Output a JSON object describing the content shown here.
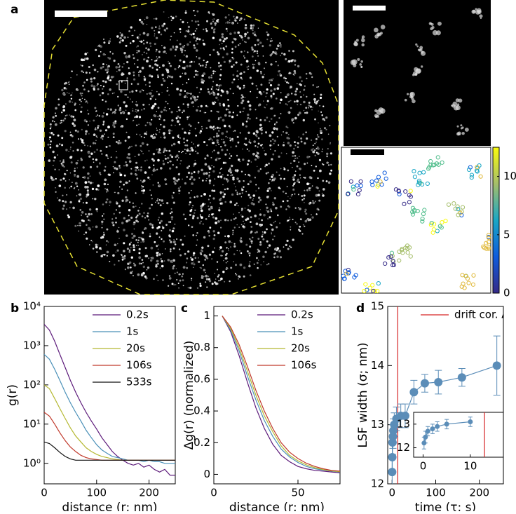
{
  "panel_labels": [
    "a",
    "b",
    "c",
    "d"
  ],
  "chart_data": [
    {
      "type": "colorbar",
      "ylim": [
        0,
        12.5
      ],
      "yticks": [
        0,
        5,
        10
      ]
    },
    {
      "type": "line",
      "log_y": true,
      "xlabel": "distance (r; nm)",
      "ylabel": "g(r)",
      "legend": "upper right",
      "x": [
        0,
        10,
        20,
        30,
        40,
        50,
        60,
        70,
        80,
        90,
        100,
        110,
        120,
        130,
        140,
        150,
        160,
        170,
        180,
        190,
        200,
        210,
        220,
        230,
        240,
        250
      ],
      "xlim": [
        0,
        250
      ],
      "xticks": [
        0,
        100,
        200
      ],
      "ylim": [
        0.3,
        10000
      ],
      "yticks": [
        {
          "value": 1,
          "label": "10⁰"
        },
        {
          "value": 10,
          "label": "10¹"
        },
        {
          "value": 100,
          "label": "10²"
        },
        {
          "value": 1000,
          "label": "10³"
        },
        {
          "value": 10000,
          "label": "10⁴"
        }
      ],
      "series": [
        {
          "name": "0.2s",
          "color": "#5c1a7a",
          "values": [
            3500,
            2500,
            1300,
            600,
            280,
            130,
            65,
            35,
            20,
            12,
            7.5,
            4.5,
            3,
            2,
            1.5,
            1.2,
            1.0,
            0.9,
            1.0,
            0.8,
            0.9,
            0.7,
            0.6,
            0.7,
            0.5,
            0.5
          ]
        },
        {
          "name": "1s",
          "color": "#4a90b8",
          "values": [
            600,
            450,
            250,
            130,
            65,
            35,
            20,
            12,
            7,
            4.5,
            3,
            2.2,
            1.8,
            1.5,
            1.4,
            1.3,
            1.2,
            1.2,
            1.2,
            1.1,
            1.2,
            1.1,
            1.1,
            1.0,
            1.0,
            1.0
          ]
        },
        {
          "name": "20s",
          "color": "#b5b832",
          "values": [
            100,
            80,
            45,
            25,
            14,
            8,
            5,
            3.5,
            2.5,
            2,
            1.7,
            1.5,
            1.4,
            1.3,
            1.25,
            1.2,
            1.2,
            1.2,
            1.2,
            1.2,
            1.2,
            1.2,
            1.2,
            1.2,
            1.2,
            1.2
          ]
        },
        {
          "name": "106s",
          "color": "#c0392b",
          "values": [
            20,
            16,
            10,
            6,
            3.8,
            2.6,
            2,
            1.6,
            1.4,
            1.3,
            1.25,
            1.2,
            1.2,
            1.2,
            1.2,
            1.2,
            1.2,
            1.2,
            1.2,
            1.2,
            1.2,
            1.2,
            1.2,
            1.2,
            1.2,
            1.2
          ]
        },
        {
          "name": "533s",
          "color": "#111111",
          "values": [
            3.5,
            3.2,
            2.5,
            1.9,
            1.5,
            1.3,
            1.2,
            1.2,
            1.2,
            1.2,
            1.2,
            1.2,
            1.2,
            1.2,
            1.2,
            1.2,
            1.2,
            1.2,
            1.2,
            1.2,
            1.2,
            1.2,
            1.2,
            1.2,
            1.2,
            1.2
          ]
        }
      ]
    },
    {
      "type": "line",
      "xlabel": "distance (r; nm)",
      "ylabel": "Δg(r) (normalized)",
      "legend": "upper right",
      "x": [
        5,
        10,
        15,
        20,
        25,
        30,
        35,
        40,
        45,
        50,
        55,
        60,
        65,
        70,
        75
      ],
      "xlim": [
        0,
        75
      ],
      "xticks": [
        0,
        50
      ],
      "ylim": [
        -0.06,
        1.06
      ],
      "yticks": [
        0,
        0.2,
        0.4,
        0.6,
        0.8,
        1
      ],
      "series": [
        {
          "name": "0.2s",
          "color": "#5c1a7a",
          "values": [
            1,
            0.9,
            0.75,
            0.58,
            0.42,
            0.29,
            0.19,
            0.12,
            0.08,
            0.05,
            0.035,
            0.025,
            0.02,
            0.015,
            0.01
          ]
        },
        {
          "name": "1s",
          "color": "#4a90b8",
          "values": [
            1,
            0.91,
            0.78,
            0.62,
            0.47,
            0.34,
            0.24,
            0.16,
            0.11,
            0.075,
            0.05,
            0.035,
            0.027,
            0.02,
            0.015
          ]
        },
        {
          "name": "20s",
          "color": "#b5b832",
          "values": [
            1,
            0.92,
            0.8,
            0.65,
            0.5,
            0.37,
            0.27,
            0.18,
            0.12,
            0.085,
            0.06,
            0.042,
            0.03,
            0.022,
            0.017
          ]
        },
        {
          "name": "106s",
          "color": "#c0392b",
          "values": [
            1,
            0.93,
            0.82,
            0.68,
            0.53,
            0.4,
            0.29,
            0.2,
            0.14,
            0.1,
            0.07,
            0.05,
            0.035,
            0.025,
            0.02
          ]
        }
      ]
    },
    {
      "type": "errorbar",
      "xlabel": "time (τ; s)",
      "ylabel": "LSF width (σ; nm)",
      "legend": "upper right",
      "color": "#5b8db8",
      "x": [
        0.2,
        0.5,
        1,
        2,
        3,
        5,
        10,
        20,
        30,
        50,
        75,
        106,
        160,
        240
      ],
      "values": [
        12.2,
        12.45,
        12.7,
        12.8,
        12.9,
        13.0,
        13.1,
        13.15,
        13.15,
        13.55,
        13.7,
        13.72,
        13.8,
        14.0
      ],
      "errors": [
        0.25,
        0.25,
        0.2,
        0.2,
        0.2,
        0.2,
        0.2,
        0.2,
        0.2,
        0.2,
        0.15,
        0.2,
        0.15,
        0.5
      ],
      "xlim": [
        -10,
        255
      ],
      "xticks": [
        0,
        100,
        200
      ],
      "ylim": [
        12,
        15
      ],
      "yticks": [
        12,
        13,
        14,
        15
      ],
      "markers": [
        {
          "name": "drift cor. Δt",
          "color": "#d62728",
          "x": 13
        }
      ]
    },
    {
      "type": "errorbar",
      "color": "#5b8db8",
      "x": [
        0.2,
        0.5,
        1,
        2,
        3,
        5,
        10
      ],
      "values": [
        12.2,
        12.45,
        12.7,
        12.8,
        12.9,
        13.0,
        13.1
      ],
      "errors": [
        0.25,
        0.25,
        0.2,
        0.2,
        0.2,
        0.2,
        0.2
      ],
      "xlim": [
        -2,
        17
      ],
      "xticks": [
        0,
        10
      ],
      "ylim": [
        11.6,
        13.5
      ],
      "yticks": [
        12,
        13
      ],
      "markers": [
        {
          "color": "#d62728",
          "x": 13
        }
      ]
    }
  ]
}
